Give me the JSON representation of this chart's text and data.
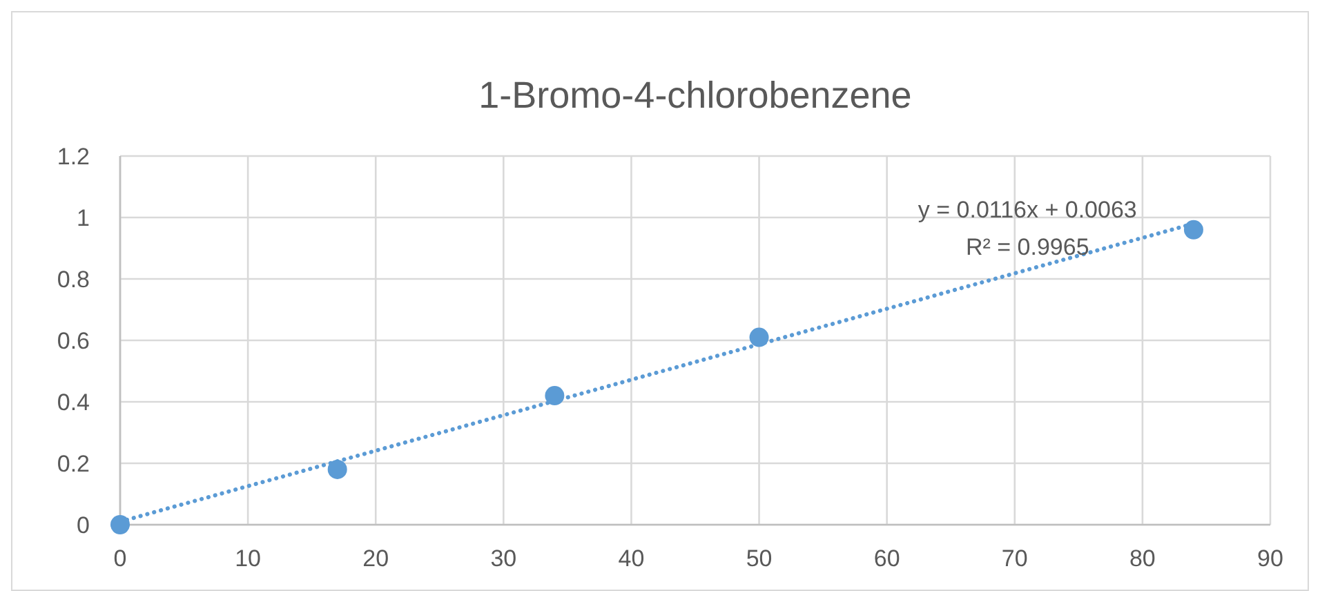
{
  "chart_data": {
    "type": "scatter",
    "title": "1-Bromo-4-chlorobenzene",
    "series": [
      {
        "color": "#5b9bd5",
        "x": [
          0,
          17,
          34,
          50,
          84
        ],
        "values": [
          0,
          0.18,
          0.42,
          0.61,
          0.96
        ],
        "marker": "circle"
      },
      {
        "type": "line",
        "color": "#5b9bd5",
        "x": [
          0,
          84
        ],
        "values": [
          0.01,
          0.98
        ],
        "line_style": "dotted"
      }
    ],
    "xlim": [
      0,
      90
    ],
    "xticks": [
      0,
      10,
      20,
      30,
      40,
      50,
      60,
      70,
      80,
      90
    ],
    "ylim": [
      0,
      1.2
    ],
    "yticks": [
      0,
      0.2,
      0.4,
      0.6,
      0.8,
      1,
      1.2
    ],
    "grid": true,
    "annotations": [
      "y = 0.0116x + 0.0063",
      "R² = 0.9965"
    ]
  }
}
